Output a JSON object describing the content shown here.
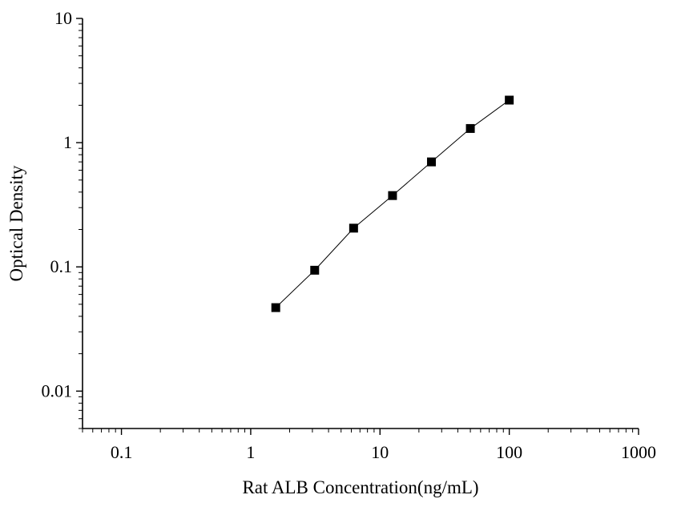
{
  "chart_data": {
    "type": "scatter",
    "xlabel": "Rat ALB Concentration(ng/mL)",
    "ylabel": "Optical Density",
    "xscale": "log",
    "yscale": "log",
    "xlim": [
      0.05,
      1000
    ],
    "ylim": [
      0.005,
      10
    ],
    "x_ticks": [
      0.1,
      1,
      10,
      100,
      1000
    ],
    "x_tick_labels": [
      "0.1",
      "1",
      "10",
      "100",
      "1000"
    ],
    "y_ticks": [
      0.01,
      0.1,
      1,
      10
    ],
    "y_tick_labels": [
      "0.01",
      "0.1",
      "1",
      "10"
    ],
    "grid": false,
    "series": [
      {
        "x": [
          1.5625,
          3.125,
          6.25,
          12.5,
          25,
          50,
          100
        ],
        "y": [
          0.047,
          0.094,
          0.205,
          0.375,
          0.7,
          1.3,
          2.2
        ],
        "marker": "square",
        "connect": true,
        "color": "#000000"
      }
    ]
  }
}
